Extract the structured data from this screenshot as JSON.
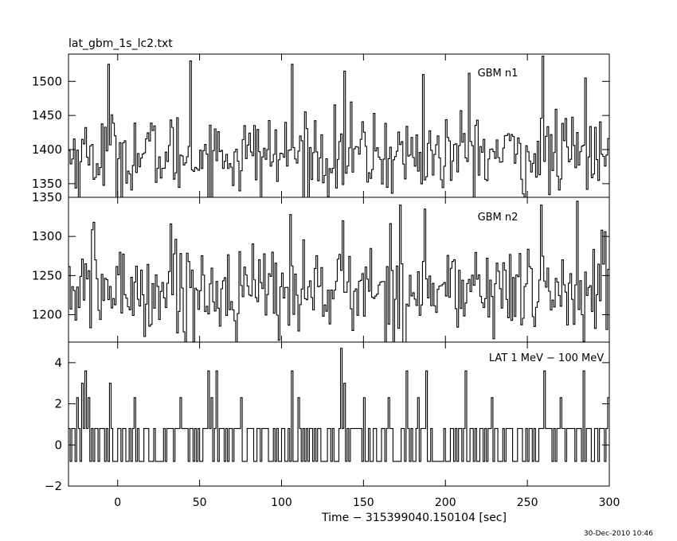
{
  "figure": {
    "title": "lat_gbm_1s_lc2.txt",
    "timestamp": "30-Dec-2010 10:46",
    "xlabel": "Time − 315399040.150104 [sec]"
  },
  "chart_data": [
    {
      "type": "line",
      "panel": "top",
      "label": "GBM n1",
      "ylim": [
        1330,
        1540
      ],
      "yticks": [
        1350,
        1400,
        1450,
        1500
      ],
      "ytick_labels": [
        "1350",
        "1400",
        "1450",
        "1500"
      ],
      "xlim": [
        -30,
        300
      ],
      "time_step": 1,
      "series": [
        {
          "x_start": -30,
          "x_end": 300,
          "mean": 1392,
          "spread": 30,
          "min": 1330,
          "max": 1537,
          "peaks": [
            {
              "x": -6,
              "y": 1525
            },
            {
              "x": 44,
              "y": 1530
            },
            {
              "x": 106,
              "y": 1525
            },
            {
              "x": 138,
              "y": 1515
            },
            {
              "x": 186,
              "y": 1510
            },
            {
              "x": 214,
              "y": 1512
            },
            {
              "x": 259,
              "y": 1537
            },
            {
              "x": 285,
              "y": 1505
            }
          ]
        }
      ]
    },
    {
      "type": "line",
      "panel": "middle",
      "label": "GBM n2",
      "ylim": [
        1165,
        1350
      ],
      "yticks": [
        1200,
        1250,
        1300,
        1350
      ],
      "ytick_labels": [
        "1200",
        "1250",
        "1300",
        "1350"
      ],
      "xlim": [
        -30,
        300
      ],
      "time_step": 1,
      "series": [
        {
          "x_start": -30,
          "x_end": 300,
          "mean": 1232,
          "spread": 30,
          "min": 1165,
          "max": 1345,
          "peaks": [
            {
              "x": -15,
              "y": 1318
            },
            {
              "x": 32,
              "y": 1316
            },
            {
              "x": 105,
              "y": 1328
            },
            {
              "x": 137,
              "y": 1320
            },
            {
              "x": 172,
              "y": 1340
            },
            {
              "x": 187,
              "y": 1335
            },
            {
              "x": 258,
              "y": 1340
            },
            {
              "x": 280,
              "y": 1345
            },
            {
              "x": 295,
              "y": 1308
            }
          ]
        }
      ]
    },
    {
      "type": "line",
      "panel": "bottom",
      "label": "LAT 1 MeV − 100 MeV",
      "ylim": [
        -2,
        5
      ],
      "yticks": [
        -2,
        0,
        2,
        4
      ],
      "ytick_labels": [
        "−2",
        "0",
        "2",
        "4"
      ],
      "xlim": [
        -30,
        300
      ],
      "xticks": [
        0,
        50,
        100,
        150,
        200,
        250,
        300
      ],
      "xtick_labels": [
        "0",
        "50",
        "100",
        "150",
        "200",
        "250",
        "300"
      ],
      "time_step": 1,
      "series": [
        {
          "x_start": -30,
          "x_end": 300,
          "levels": [
            -0.8,
            0.8,
            2.3,
            3.6,
            4.7
          ],
          "typical_range": [
            -0.8,
            0.8
          ],
          "spikes": [
            {
              "x": -25,
              "y": 2.3
            },
            {
              "x": -22,
              "y": 3.0
            },
            {
              "x": -20,
              "y": 3.6
            },
            {
              "x": -18,
              "y": 2.3
            },
            {
              "x": -5,
              "y": 3.0
            },
            {
              "x": 10,
              "y": 2.3
            },
            {
              "x": 38,
              "y": 2.3
            },
            {
              "x": 55,
              "y": 3.6
            },
            {
              "x": 57,
              "y": 2.3
            },
            {
              "x": 60,
              "y": 3.6
            },
            {
              "x": 75,
              "y": 2.3
            },
            {
              "x": 106,
              "y": 3.6
            },
            {
              "x": 110,
              "y": 2.3
            },
            {
              "x": 136,
              "y": 4.7
            },
            {
              "x": 138,
              "y": 3.0
            },
            {
              "x": 150,
              "y": 2.3
            },
            {
              "x": 165,
              "y": 2.3
            },
            {
              "x": 176,
              "y": 3.6
            },
            {
              "x": 183,
              "y": 2.3
            },
            {
              "x": 188,
              "y": 3.6
            },
            {
              "x": 212,
              "y": 3.6
            },
            {
              "x": 228,
              "y": 2.3
            },
            {
              "x": 260,
              "y": 3.6
            },
            {
              "x": 270,
              "y": 2.3
            },
            {
              "x": 284,
              "y": 3.6
            },
            {
              "x": 299,
              "y": 2.3
            }
          ]
        }
      ]
    }
  ]
}
